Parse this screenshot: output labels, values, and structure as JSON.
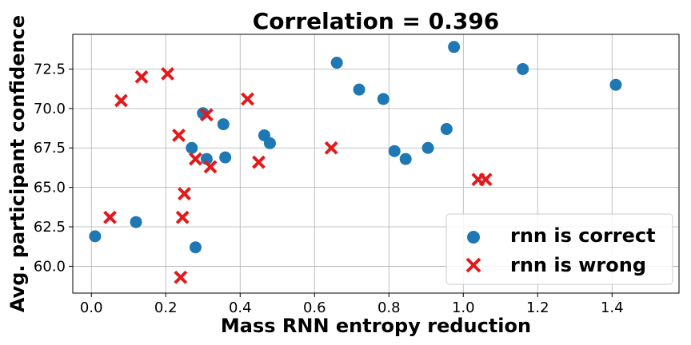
{
  "chart_data": {
    "type": "scatter",
    "title": "Correlation = 0.396",
    "xlabel": "Mass RNN entropy reduction",
    "ylabel": "Avg. participant confidence",
    "xlim": [
      -0.05,
      1.58
    ],
    "ylim": [
      58.3,
      74.7
    ],
    "xticks": [
      "0.0",
      "0.2",
      "0.4",
      "0.6",
      "0.8",
      "1.0",
      "1.2",
      "1.4"
    ],
    "yticks": [
      "60.0",
      "62.5",
      "65.0",
      "67.5",
      "70.0",
      "72.5"
    ],
    "grid": true,
    "legend_position": "bottom-right",
    "series": [
      {
        "name": "rnn is correct",
        "marker": "circle",
        "color": "#1f77b4",
        "x": [
          0.01,
          0.12,
          0.27,
          0.28,
          0.3,
          0.31,
          0.355,
          0.36,
          0.465,
          0.48,
          0.66,
          0.72,
          0.785,
          0.815,
          0.845,
          0.905,
          0.955,
          0.975,
          1.16,
          1.41
        ],
        "y": [
          61.9,
          62.8,
          67.5,
          61.2,
          69.7,
          66.8,
          69.0,
          66.9,
          68.3,
          67.8,
          72.9,
          71.2,
          70.6,
          67.3,
          66.8,
          67.5,
          68.7,
          73.9,
          72.5,
          71.5
        ]
      },
      {
        "name": "rnn is wrong",
        "marker": "x",
        "color": "#e31a1c",
        "x": [
          0.05,
          0.08,
          0.135,
          0.205,
          0.235,
          0.24,
          0.245,
          0.25,
          0.28,
          0.31,
          0.32,
          0.42,
          0.45,
          0.645,
          1.04,
          1.06
        ],
        "y": [
          63.1,
          70.5,
          72.0,
          72.2,
          68.3,
          59.3,
          63.1,
          64.6,
          66.8,
          69.6,
          66.3,
          70.6,
          66.6,
          67.5,
          65.5,
          65.5
        ]
      }
    ]
  }
}
